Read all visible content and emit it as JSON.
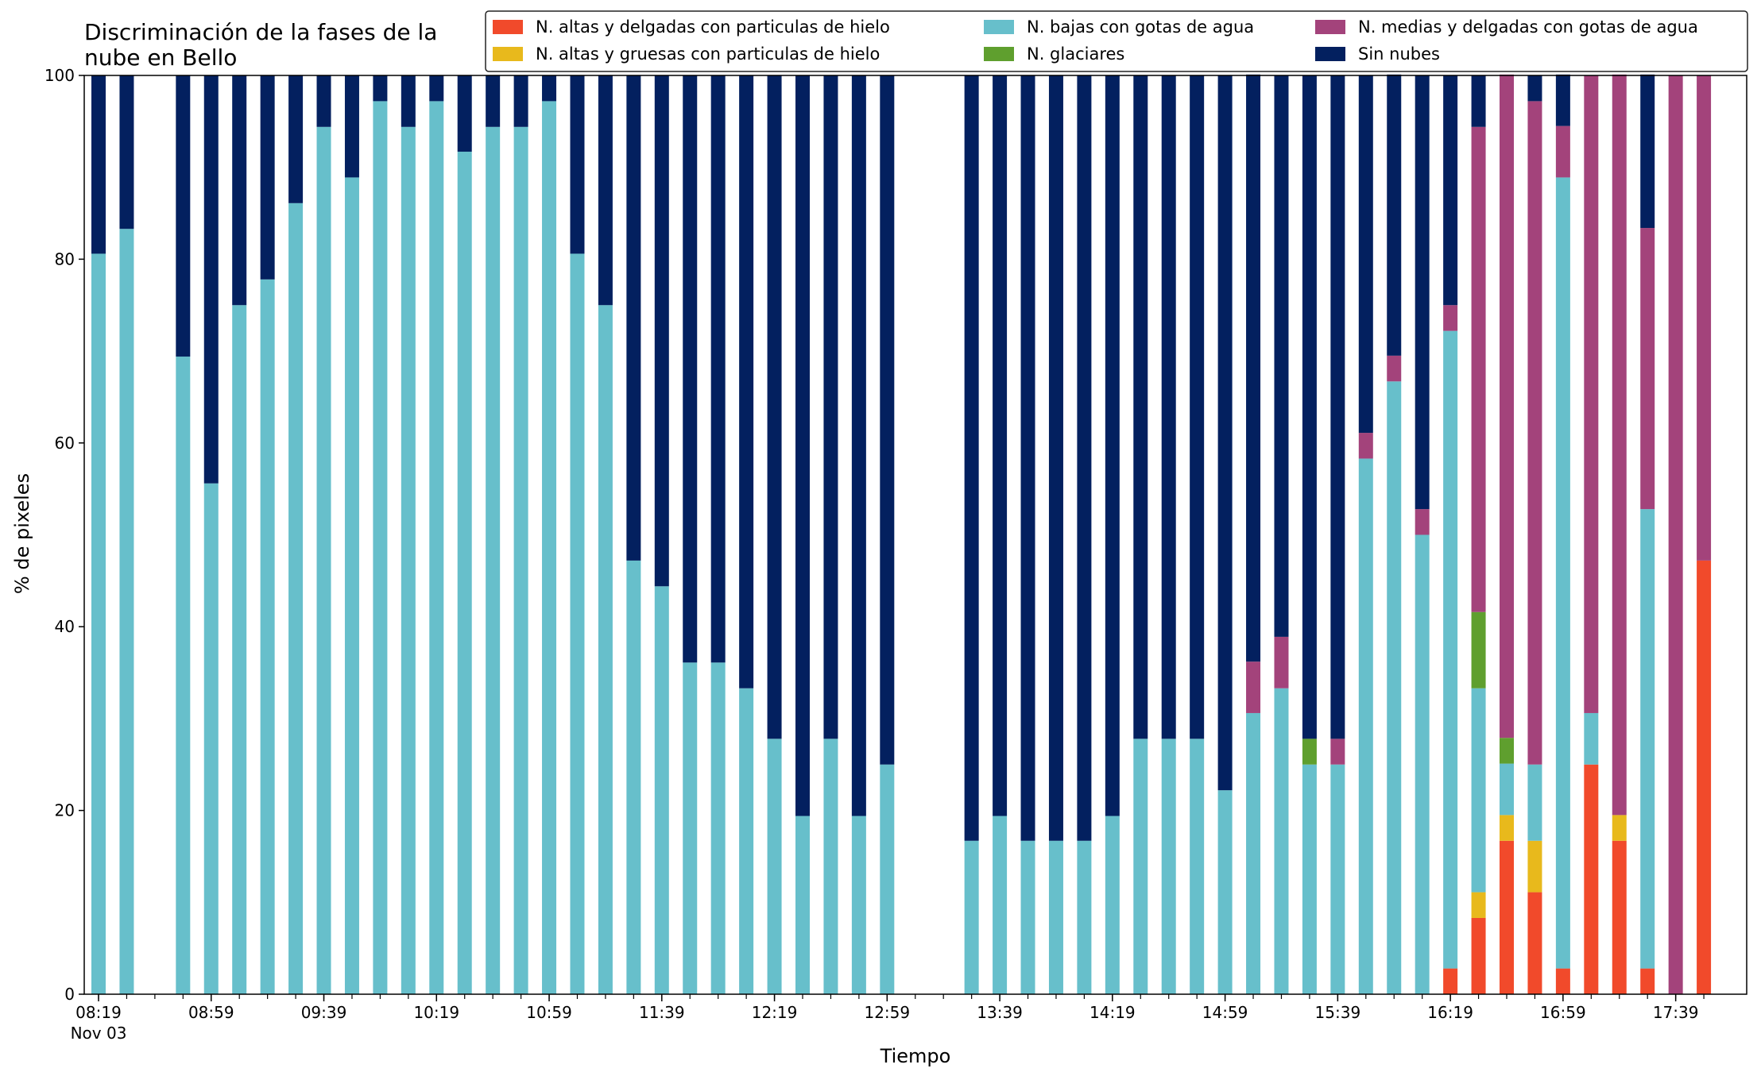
{
  "chart_data": {
    "type": "bar",
    "stacked": true,
    "title": "Discriminación de la fases de la\nnube en Bello",
    "xlabel": "Tiempo",
    "ylabel": "% de pixeles",
    "ylim": [
      0,
      100
    ],
    "yticks": [
      0,
      20,
      40,
      60,
      80,
      100
    ],
    "grid": false,
    "legend_placement": "top-right",
    "legend_columns": 3,
    "x_start": "08:19",
    "x_interval_minutes": 10,
    "x_tick_labels": [
      "08:19",
      "08:59",
      "09:39",
      "10:19",
      "10:59",
      "11:39",
      "12:19",
      "12:59",
      "13:39",
      "14:19",
      "14:59",
      "15:39",
      "16:19",
      "16:59",
      "17:39"
    ],
    "x_tick_sublabel": "Nov 03",
    "categories": [
      "08:19",
      "08:29",
      "08:39",
      "08:49",
      "08:59",
      "09:09",
      "09:19",
      "09:29",
      "09:39",
      "09:49",
      "09:59",
      "10:09",
      "10:19",
      "10:29",
      "10:39",
      "10:49",
      "10:59",
      "11:09",
      "11:19",
      "11:29",
      "11:39",
      "11:49",
      "11:59",
      "12:09",
      "12:19",
      "12:29",
      "12:39",
      "12:49",
      "12:59",
      "13:09",
      "13:19",
      "13:29",
      "13:39",
      "13:49",
      "13:59",
      "14:09",
      "14:19",
      "14:29",
      "14:39",
      "14:49",
      "14:59",
      "15:09",
      "15:19",
      "15:29",
      "15:39",
      "15:49",
      "15:59",
      "16:09",
      "16:19",
      "16:29",
      "16:39",
      "16:49",
      "16:59",
      "17:09",
      "17:19",
      "17:29",
      "17:39",
      "17:49"
    ],
    "series": [
      {
        "name": "N. altas y delgadas con particulas de hielo",
        "color": "#f14a2b",
        "values": [
          0,
          0,
          null,
          0,
          0,
          0,
          0,
          0,
          0,
          0,
          0,
          0,
          0,
          0,
          0,
          0,
          0,
          0,
          0,
          0,
          0,
          0,
          0,
          0,
          0,
          0,
          0,
          0,
          0,
          null,
          null,
          0,
          0,
          0,
          0,
          0,
          0,
          0,
          0,
          0,
          0,
          0,
          0,
          0,
          0,
          0,
          0,
          0,
          2.8,
          8.3,
          16.7,
          11.1,
          2.8,
          25,
          16.7,
          2.8,
          0,
          47.2
        ]
      },
      {
        "name": "N. altas y gruesas con particulas de hielo",
        "color": "#e8b91c",
        "values": [
          0,
          0,
          null,
          0,
          0,
          0,
          0,
          0,
          0,
          0,
          0,
          0,
          0,
          0,
          0,
          0,
          0,
          0,
          0,
          0,
          0,
          0,
          0,
          0,
          0,
          0,
          0,
          0,
          0,
          null,
          null,
          0,
          0,
          0,
          0,
          0,
          0,
          0,
          0,
          0,
          0,
          0,
          0,
          0,
          0,
          0,
          0,
          0,
          0,
          2.8,
          2.8,
          5.6,
          0,
          0,
          2.8,
          0,
          0,
          0
        ]
      },
      {
        "name": "N. bajas con gotas de agua",
        "color": "#67bfcb",
        "values": [
          80.6,
          83.3,
          null,
          69.4,
          55.6,
          75,
          77.8,
          86.1,
          94.4,
          88.9,
          97.2,
          94.4,
          97.2,
          91.7,
          94.4,
          94.4,
          97.2,
          80.6,
          75,
          47.2,
          44.4,
          36.1,
          36.1,
          33.3,
          27.8,
          19.4,
          27.8,
          19.4,
          25,
          null,
          null,
          16.7,
          19.4,
          16.7,
          16.7,
          16.7,
          19.4,
          27.8,
          27.8,
          27.8,
          22.2,
          30.6,
          33.3,
          25,
          25,
          58.3,
          66.7,
          50,
          69.4,
          22.2,
          5.6,
          8.3,
          86.1,
          5.6,
          0,
          50,
          0,
          0
        ]
      },
      {
        "name": "N. glaciares",
        "color": "#5f9f2e",
        "values": [
          0,
          0,
          null,
          0,
          0,
          0,
          0,
          0,
          0,
          0,
          0,
          0,
          0,
          0,
          0,
          0,
          0,
          0,
          0,
          0,
          0,
          0,
          0,
          0,
          0,
          0,
          0,
          0,
          0,
          null,
          null,
          0,
          0,
          0,
          0,
          0,
          0,
          0,
          0,
          0,
          0,
          0,
          0,
          2.8,
          0,
          0,
          0,
          0,
          0,
          8.3,
          2.8,
          0,
          0,
          0,
          0,
          0,
          0,
          0
        ]
      },
      {
        "name": "N. medias y delgadas con gotas de agua",
        "color": "#a3437b",
        "values": [
          0,
          0,
          null,
          0,
          0,
          0,
          0,
          0,
          0,
          0,
          0,
          0,
          0,
          0,
          0,
          0,
          0,
          0,
          0,
          0,
          0,
          0,
          0,
          0,
          0,
          0,
          0,
          0,
          0,
          null,
          null,
          0,
          0,
          0,
          0,
          0,
          0,
          0,
          0,
          0,
          0,
          5.6,
          5.6,
          0,
          2.8,
          2.8,
          2.8,
          2.8,
          2.8,
          52.8,
          72.2,
          72.2,
          5.6,
          69.4,
          80.6,
          30.6,
          100,
          52.8
        ]
      },
      {
        "name": "Sin nubes",
        "color": "#03205f",
        "values": [
          19.4,
          16.7,
          null,
          30.6,
          44.4,
          25,
          22.2,
          13.9,
          5.6,
          11.1,
          2.8,
          5.6,
          2.8,
          8.3,
          5.6,
          5.6,
          2.8,
          19.4,
          25,
          52.8,
          55.6,
          63.9,
          63.9,
          66.7,
          72.2,
          80.6,
          72.2,
          80.6,
          75,
          null,
          null,
          83.3,
          80.6,
          83.3,
          83.3,
          83.3,
          80.6,
          72.2,
          72.2,
          72.2,
          77.8,
          63.9,
          61.1,
          72.2,
          72.2,
          38.9,
          30.6,
          47.2,
          25,
          5.6,
          0,
          2.8,
          5.6,
          0,
          0,
          16.7,
          0,
          0
        ]
      }
    ]
  }
}
